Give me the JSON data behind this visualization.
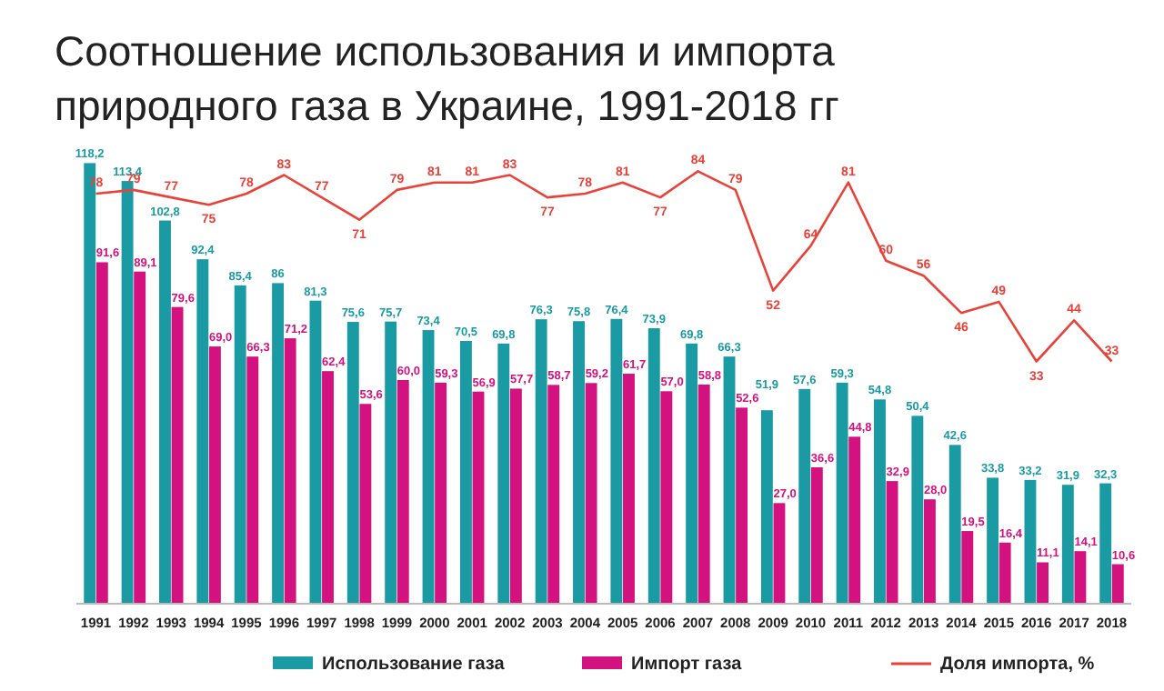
{
  "chart_data": {
    "type": "bar",
    "title": "Соотношение использования и импорта природного газа в Украине, 1991-2018 гг",
    "categories": [
      "1991",
      "1992",
      "1993",
      "1994",
      "1995",
      "1996",
      "1997",
      "1998",
      "1999",
      "2000",
      "2001",
      "2002",
      "2003",
      "2004",
      "2005",
      "2006",
      "2007",
      "2008",
      "2009",
      "2010",
      "2011",
      "2012",
      "2013",
      "2014",
      "2015",
      "2016",
      "2017",
      "2018"
    ],
    "series": [
      {
        "name": "Использование газа",
        "color": "#1a9ba4",
        "values": [
          118.2,
          113.4,
          102.8,
          92.4,
          85.4,
          86,
          81.3,
          75.6,
          75.7,
          73.4,
          70.5,
          69.8,
          76.3,
          75.8,
          76.4,
          73.9,
          69.8,
          66.3,
          51.9,
          57.6,
          59.3,
          54.8,
          50.4,
          42.6,
          33.8,
          33.2,
          31.9,
          32.3
        ],
        "value_labels": [
          "118,2",
          "113,4",
          "102,8",
          "92,4",
          "85,4",
          "86",
          "81,3",
          "75,6",
          "75,7",
          "73,4",
          "70,5",
          "69,8",
          "76,3",
          "75,8",
          "76,4",
          "73,9",
          "69,8",
          "66,3",
          "51,9",
          "57,6",
          "59,3",
          "54,8",
          "50,4",
          "42,6",
          "33,8",
          "33,2",
          "31,9",
          "32,3"
        ]
      },
      {
        "name": "Импорт газа",
        "color": "#d4127f",
        "values": [
          91.6,
          89.1,
          79.6,
          69.0,
          66.3,
          71.2,
          62.4,
          53.6,
          60.0,
          59.3,
          56.9,
          57.7,
          58.7,
          59.2,
          61.7,
          57.0,
          58.8,
          52.6,
          27.0,
          36.6,
          44.8,
          32.9,
          28.0,
          19.5,
          16.4,
          11.1,
          14.1,
          10.6
        ],
        "value_labels": [
          "91,6",
          "89,1",
          "79,6",
          "69,0",
          "66,3",
          "71,2",
          "62,4",
          "53,6",
          "60,0",
          "59,3",
          "56,9",
          "57,7",
          "58,7",
          "59,2",
          "61,7",
          "57,0",
          "58,8",
          "52,6",
          "27,0",
          "36,6",
          "44,8",
          "32,9",
          "28,0",
          "19,5",
          "16,4",
          "11,1",
          "14,1",
          "10,6"
        ]
      },
      {
        "name": "Доля импорта, %",
        "type": "line",
        "axis": "y2",
        "color": "#e8433a",
        "values": [
          78,
          79,
          77,
          75,
          78,
          83,
          77,
          71,
          79,
          81,
          81,
          83,
          77,
          78,
          81,
          77,
          84,
          79,
          52,
          64,
          81,
          60,
          56,
          46,
          49,
          33,
          44,
          33
        ],
        "value_labels": [
          "78",
          "79",
          "77",
          "75",
          "78",
          "83",
          "77",
          "71",
          "79",
          "81",
          "81",
          "83",
          "77",
          "78",
          "81",
          "77",
          "84",
          "79",
          "52",
          "64",
          "81",
          "60",
          "56",
          "46",
          "49",
          "33",
          "44",
          "33"
        ]
      }
    ],
    "ylim": [
      0,
      120
    ],
    "y2lim": [
      -32,
      88
    ],
    "tick_labels": "x",
    "legend": "bottom",
    "grid": false
  }
}
